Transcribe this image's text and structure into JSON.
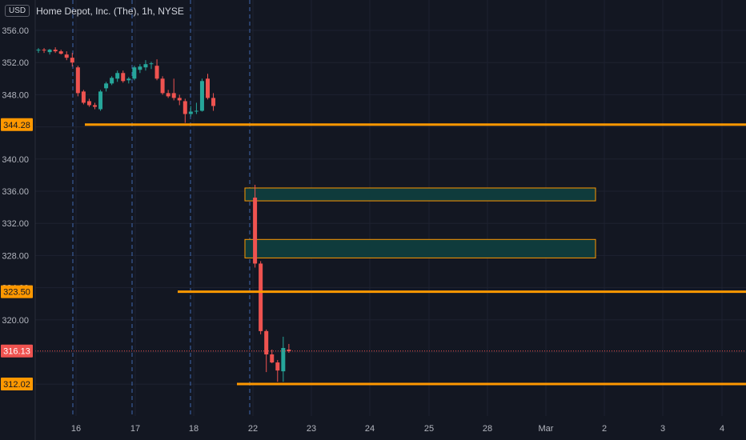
{
  "header": {
    "currency": "USD",
    "title": "Home Depot, Inc. (The), 1h, NYSE"
  },
  "colors": {
    "background": "#131722",
    "grid": "#1e2230",
    "axis_text": "#b2b5be",
    "up": "#26a69a",
    "down": "#ef5350",
    "level_line": "#ff9800",
    "zone_fill": "#0f3b3c",
    "zone_border": "#ff9800",
    "session_divider": "#4a7bd0",
    "price_tag": "#ef5350"
  },
  "chart_data": {
    "type": "candlestick",
    "y_ticks": [
      "356.00",
      "352.00",
      "348.00",
      "344.00",
      "340.00",
      "336.00",
      "332.00",
      "328.00",
      "324.00",
      "320.00",
      "316.00",
      "312.00"
    ],
    "y_tick_values": [
      356,
      352,
      348,
      344,
      340,
      336,
      332,
      328,
      324,
      320,
      316,
      312
    ],
    "ylim": [
      309,
      357
    ],
    "x_ticks": [
      "16",
      "17",
      "18",
      "22",
      "23",
      "24",
      "25",
      "28",
      "Mar",
      "2",
      "3",
      "4"
    ],
    "session_dividers_at": [
      "16",
      "17",
      "18",
      "22"
    ],
    "candles": [
      {
        "o": 353.5,
        "h": 353.8,
        "l": 353.2,
        "c": 353.6
      },
      {
        "o": 353.6,
        "h": 353.8,
        "l": 353.2,
        "c": 353.5
      },
      {
        "o": 353.3,
        "h": 353.7,
        "l": 353.0,
        "c": 353.6
      },
      {
        "o": 353.6,
        "h": 353.9,
        "l": 353.2,
        "c": 353.4
      },
      {
        "o": 353.4,
        "h": 353.6,
        "l": 353.0,
        "c": 353.1
      },
      {
        "o": 353.0,
        "h": 353.4,
        "l": 352.3,
        "c": 352.6
      },
      {
        "o": 352.6,
        "h": 353.2,
        "l": 351.5,
        "c": 352.0
      },
      {
        "o": 351.4,
        "h": 351.6,
        "l": 347.8,
        "c": 348.2
      },
      {
        "o": 348.4,
        "h": 348.6,
        "l": 346.8,
        "c": 347.0
      },
      {
        "o": 347.2,
        "h": 347.5,
        "l": 346.5,
        "c": 346.7
      },
      {
        "o": 346.7,
        "h": 347.0,
        "l": 346.2,
        "c": 346.5
      },
      {
        "o": 346.2,
        "h": 348.6,
        "l": 346.0,
        "c": 348.4
      },
      {
        "o": 348.8,
        "h": 349.6,
        "l": 348.4,
        "c": 349.4
      },
      {
        "o": 349.4,
        "h": 350.3,
        "l": 349.2,
        "c": 350.1
      },
      {
        "o": 350.0,
        "h": 351.0,
        "l": 349.6,
        "c": 350.7
      },
      {
        "o": 350.7,
        "h": 351.0,
        "l": 349.5,
        "c": 349.7
      },
      {
        "o": 349.8,
        "h": 350.2,
        "l": 349.4,
        "c": 350.0
      },
      {
        "o": 350.0,
        "h": 351.6,
        "l": 349.8,
        "c": 351.4
      },
      {
        "o": 351.1,
        "h": 351.8,
        "l": 350.7,
        "c": 351.5
      },
      {
        "o": 351.4,
        "h": 352.3,
        "l": 351.0,
        "c": 351.8
      },
      {
        "o": 351.8,
        "h": 352.1,
        "l": 351.2,
        "c": 351.9
      },
      {
        "o": 351.6,
        "h": 352.4,
        "l": 349.8,
        "c": 350.0
      },
      {
        "o": 350.0,
        "h": 350.3,
        "l": 348.0,
        "c": 348.2
      },
      {
        "o": 348.2,
        "h": 348.6,
        "l": 347.6,
        "c": 347.8
      },
      {
        "o": 348.2,
        "h": 350.0,
        "l": 347.3,
        "c": 347.6
      },
      {
        "o": 347.6,
        "h": 348.0,
        "l": 346.7,
        "c": 347.3
      },
      {
        "o": 347.2,
        "h": 347.5,
        "l": 344.5,
        "c": 345.6
      },
      {
        "o": 345.6,
        "h": 346.6,
        "l": 345.3,
        "c": 345.9
      },
      {
        "o": 346.0,
        "h": 347.0,
        "l": 345.6,
        "c": 346.0
      },
      {
        "o": 346.0,
        "h": 350.0,
        "l": 345.9,
        "c": 349.7
      },
      {
        "o": 350.0,
        "h": 350.6,
        "l": 347.4,
        "c": 347.6
      },
      {
        "o": 347.6,
        "h": 348.2,
        "l": 346.0,
        "c": 346.6
      },
      {
        "o": 335.2,
        "h": 336.8,
        "l": 326.5,
        "c": 327.0
      },
      {
        "o": 327.0,
        "h": 327.3,
        "l": 318.2,
        "c": 318.6
      },
      {
        "o": 318.6,
        "h": 318.8,
        "l": 313.5,
        "c": 315.7
      },
      {
        "o": 315.7,
        "h": 316.3,
        "l": 314.6,
        "c": 314.7
      },
      {
        "o": 314.7,
        "h": 315.0,
        "l": 312.3,
        "c": 313.7
      },
      {
        "o": 313.6,
        "h": 317.9,
        "l": 312.3,
        "c": 316.5
      },
      {
        "o": 316.3,
        "h": 317.0,
        "l": 315.9,
        "c": 316.1
      }
    ],
    "horizontal_levels": [
      {
        "label": "344.28",
        "value": 344.28
      },
      {
        "label": "323.50",
        "value": 323.5
      },
      {
        "label": "312.02",
        "value": 312.02
      }
    ],
    "zones": [
      {
        "top": 336.4,
        "bottom": 334.8
      },
      {
        "top": 330.0,
        "bottom": 327.7
      }
    ],
    "last_price": {
      "label": "316.13",
      "value": 316.13
    }
  }
}
